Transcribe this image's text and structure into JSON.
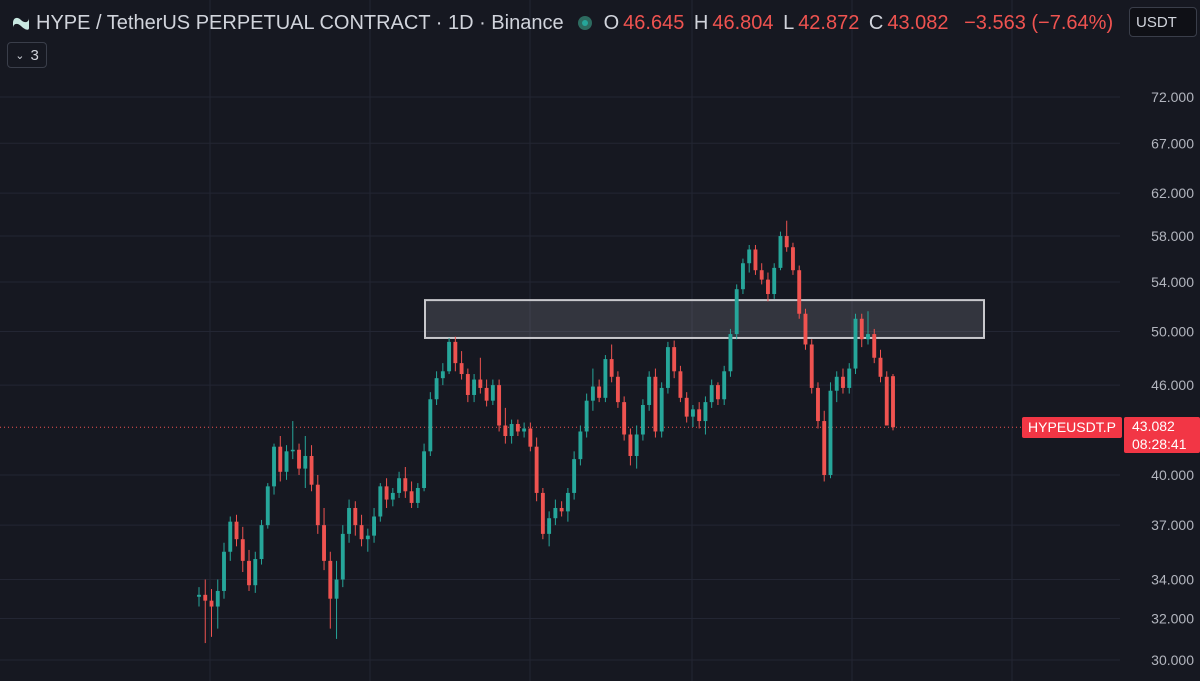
{
  "header": {
    "title": "HYPE / TetherUS PERPETUAL CONTRACT · 1D · Binance",
    "open_label": "O",
    "open": "46.645",
    "high_label": "H",
    "high": "46.804",
    "low_label": "L",
    "low": "42.872",
    "close_label": "C",
    "close": "43.082",
    "change": "−3.563 (−7.64%)"
  },
  "collapse_count": "3",
  "currency": "USDT",
  "price_tag": {
    "symbol": "HYPEUSDT.P",
    "price": "43.082",
    "countdown": "08:28:41"
  },
  "colors": {
    "up": "#26a69a",
    "down": "#ef5350",
    "background": "#161821",
    "grid": "#232633"
  },
  "chart_data": {
    "type": "candlestick",
    "y_scale": "log",
    "ylim": [
      29.5,
      78
    ],
    "y_ticks": [
      "72.000",
      "67.000",
      "62.000",
      "58.000",
      "54.000",
      "50.000",
      "46.000",
      "40.000",
      "37.000",
      "34.000",
      "32.000",
      "30.000"
    ],
    "last_price": 43.082,
    "zone": {
      "low": 49.5,
      "high": 52.5
    },
    "candles": [
      [
        33.1,
        33.6,
        32.6,
        33.2
      ],
      [
        33.2,
        34.0,
        30.8,
        32.9
      ],
      [
        32.9,
        33.5,
        31.1,
        32.6
      ],
      [
        32.6,
        34.0,
        31.5,
        33.4
      ],
      [
        33.4,
        36.0,
        33.0,
        35.5
      ],
      [
        35.5,
        37.5,
        35.0,
        37.2
      ],
      [
        37.2,
        37.6,
        35.8,
        36.2
      ],
      [
        36.2,
        36.9,
        34.4,
        35.0
      ],
      [
        35.0,
        35.6,
        33.4,
        33.7
      ],
      [
        33.7,
        35.5,
        33.3,
        35.1
      ],
      [
        35.1,
        37.3,
        34.8,
        37.0
      ],
      [
        37.0,
        39.5,
        36.8,
        39.3
      ],
      [
        39.3,
        42.0,
        38.8,
        41.8
      ],
      [
        41.8,
        42.5,
        39.6,
        40.2
      ],
      [
        40.2,
        41.9,
        39.7,
        41.5
      ],
      [
        41.5,
        43.5,
        41.0,
        41.6
      ],
      [
        41.6,
        42.0,
        40.0,
        40.4
      ],
      [
        40.4,
        42.5,
        39.2,
        41.2
      ],
      [
        41.2,
        41.9,
        39.0,
        39.4
      ],
      [
        39.4,
        40.0,
        36.5,
        37.0
      ],
      [
        37.0,
        38.0,
        34.5,
        35.0
      ],
      [
        35.0,
        35.5,
        31.5,
        33.0
      ],
      [
        33.0,
        35.0,
        31.0,
        34.0
      ],
      [
        34.0,
        37.0,
        33.6,
        36.5
      ],
      [
        36.5,
        38.5,
        36.0,
        38.0
      ],
      [
        38.0,
        38.4,
        36.4,
        37.0
      ],
      [
        37.0,
        37.6,
        35.8,
        36.2
      ],
      [
        36.2,
        36.8,
        35.5,
        36.4
      ],
      [
        36.4,
        38.0,
        36.0,
        37.5
      ],
      [
        37.5,
        39.5,
        37.2,
        39.3
      ],
      [
        39.3,
        39.8,
        38.0,
        38.5
      ],
      [
        38.5,
        39.2,
        38.1,
        38.9
      ],
      [
        38.9,
        40.2,
        38.6,
        39.8
      ],
      [
        39.8,
        40.5,
        38.6,
        39.0
      ],
      [
        39.0,
        39.6,
        38.0,
        38.3
      ],
      [
        38.3,
        39.5,
        38.0,
        39.2
      ],
      [
        39.2,
        42.0,
        39.0,
        41.5
      ],
      [
        41.5,
        45.5,
        41.2,
        45.0
      ],
      [
        45.0,
        47.0,
        44.6,
        46.5
      ],
      [
        46.5,
        47.6,
        46.0,
        47.0
      ],
      [
        47.0,
        49.5,
        46.8,
        49.2
      ],
      [
        49.2,
        49.6,
        47.0,
        47.6
      ],
      [
        47.6,
        48.5,
        46.4,
        46.8
      ],
      [
        46.8,
        47.2,
        44.8,
        45.3
      ],
      [
        45.3,
        46.8,
        44.8,
        46.4
      ],
      [
        46.4,
        48.0,
        45.4,
        45.8
      ],
      [
        45.8,
        46.4,
        44.5,
        44.9
      ],
      [
        44.9,
        46.4,
        44.6,
        46.0
      ],
      [
        46.0,
        46.4,
        42.8,
        43.2
      ],
      [
        43.2,
        44.4,
        42.0,
        42.5
      ],
      [
        42.5,
        43.6,
        42.0,
        43.3
      ],
      [
        43.3,
        43.6,
        42.5,
        42.8
      ],
      [
        42.8,
        43.4,
        42.4,
        43.0
      ],
      [
        43.0,
        43.4,
        41.5,
        41.8
      ],
      [
        41.8,
        42.4,
        38.4,
        38.9
      ],
      [
        38.9,
        39.2,
        36.2,
        36.5
      ],
      [
        36.5,
        37.8,
        35.8,
        37.4
      ],
      [
        37.4,
        38.5,
        37.0,
        38.0
      ],
      [
        38.0,
        38.4,
        37.5,
        37.8
      ],
      [
        37.8,
        39.2,
        37.2,
        38.9
      ],
      [
        38.9,
        41.5,
        38.5,
        41.0
      ],
      [
        41.0,
        43.2,
        40.6,
        42.8
      ],
      [
        42.8,
        45.4,
        42.4,
        44.9
      ],
      [
        44.9,
        47.2,
        44.2,
        45.9
      ],
      [
        45.9,
        46.4,
        44.8,
        45.1
      ],
      [
        45.1,
        48.2,
        44.8,
        47.9
      ],
      [
        47.9,
        49.0,
        46.2,
        46.6
      ],
      [
        46.6,
        47.0,
        44.4,
        44.8
      ],
      [
        44.8,
        45.2,
        42.2,
        42.6
      ],
      [
        42.6,
        43.0,
        40.6,
        41.2
      ],
      [
        41.2,
        43.2,
        40.4,
        42.6
      ],
      [
        42.6,
        45.0,
        42.2,
        44.6
      ],
      [
        44.6,
        47.0,
        44.2,
        46.6
      ],
      [
        46.6,
        47.2,
        42.4,
        42.8
      ],
      [
        42.8,
        46.2,
        42.4,
        45.8
      ],
      [
        45.8,
        49.2,
        45.4,
        48.8
      ],
      [
        48.8,
        49.3,
        46.5,
        47.0
      ],
      [
        47.0,
        47.4,
        44.8,
        45.1
      ],
      [
        45.1,
        45.5,
        43.4,
        43.8
      ],
      [
        43.8,
        44.6,
        43.1,
        44.3
      ],
      [
        44.3,
        44.8,
        43.0,
        43.5
      ],
      [
        43.5,
        45.2,
        42.6,
        44.8
      ],
      [
        44.8,
        46.4,
        44.4,
        46.0
      ],
      [
        46.0,
        46.2,
        44.6,
        45.0
      ],
      [
        45.0,
        47.4,
        44.6,
        47.0
      ],
      [
        47.0,
        50.2,
        46.6,
        49.8
      ],
      [
        49.8,
        53.8,
        49.4,
        53.4
      ],
      [
        53.4,
        56.0,
        53.0,
        55.6
      ],
      [
        55.6,
        57.2,
        54.8,
        56.8
      ],
      [
        56.8,
        57.2,
        54.6,
        55.0
      ],
      [
        55.0,
        55.6,
        53.8,
        54.2
      ],
      [
        54.2,
        54.8,
        52.4,
        53.0
      ],
      [
        53.0,
        55.6,
        52.6,
        55.2
      ],
      [
        55.2,
        58.4,
        55.0,
        58.0
      ],
      [
        58.0,
        59.4,
        56.6,
        57.0
      ],
      [
        57.0,
        57.4,
        54.6,
        55.0
      ],
      [
        55.0,
        55.4,
        51.0,
        51.4
      ],
      [
        51.4,
        51.8,
        48.6,
        49.0
      ],
      [
        49.0,
        49.4,
        45.4,
        45.8
      ],
      [
        45.8,
        46.2,
        43.0,
        43.5
      ],
      [
        43.5,
        44.2,
        39.6,
        40.0
      ],
      [
        40.0,
        46.2,
        39.8,
        45.6
      ],
      [
        45.6,
        47.0,
        44.8,
        46.6
      ],
      [
        46.6,
        47.2,
        45.4,
        45.8
      ],
      [
        45.8,
        47.6,
        45.4,
        47.2
      ],
      [
        47.2,
        51.4,
        46.8,
        51.0
      ],
      [
        51.0,
        51.4,
        48.8,
        49.4
      ],
      [
        49.4,
        51.6,
        49.0,
        49.8
      ],
      [
        49.8,
        50.2,
        47.6,
        48.0
      ],
      [
        48.0,
        48.6,
        46.2,
        46.6
      ],
      [
        46.6,
        47.0,
        43.2,
        43.2
      ],
      [
        46.645,
        46.804,
        42.872,
        43.082
      ]
    ]
  }
}
